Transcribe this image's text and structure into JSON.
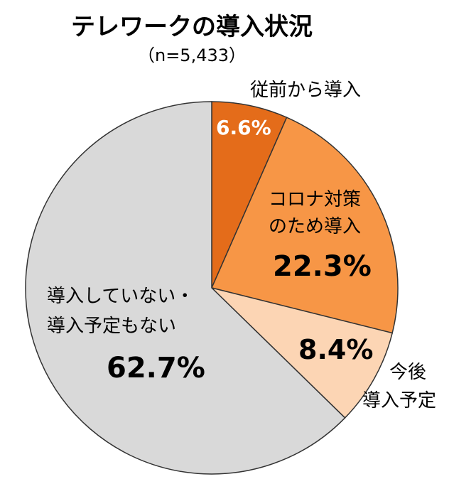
{
  "chart_data": {
    "type": "pie",
    "title": "テレワークの導入状況",
    "subtitle": "（n=5,433）",
    "start": "top",
    "direction": "clockwise",
    "slices": [
      {
        "label": "従前から導入",
        "value": 6.6,
        "value_label": "6.6%",
        "color": "#E46C1A"
      },
      {
        "label": "コロナ対策のため導入",
        "value": 22.3,
        "value_label": "22.3%",
        "color": "#F79646"
      },
      {
        "label": "今後導入予定",
        "value": 8.4,
        "value_label": "8.4%",
        "color": "#FCD5B4"
      },
      {
        "label": "導入していない・導入予定もない",
        "value": 62.7,
        "value_label": "62.7%",
        "color": "#D9D9D9"
      }
    ],
    "label_lines": {
      "s1": [
        "コロナ対策",
        "のため導入"
      ],
      "s2": [
        "今後",
        "導入予定"
      ],
      "s3": [
        "導入していない・",
        "導入予定もない"
      ]
    },
    "legend": "none"
  }
}
